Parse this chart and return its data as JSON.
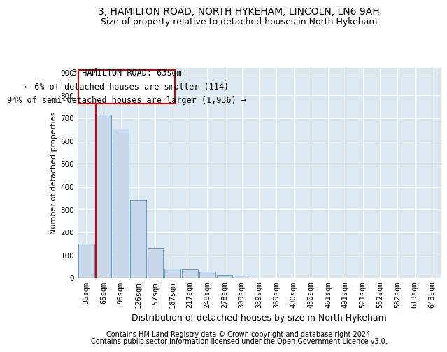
{
  "title1": "3, HAMILTON ROAD, NORTH HYKEHAM, LINCOLN, LN6 9AH",
  "title2": "Size of property relative to detached houses in North Hykeham",
  "xlabel": "Distribution of detached houses by size in North Hykeham",
  "ylabel": "Number of detached properties",
  "categories": [
    "35sqm",
    "65sqm",
    "96sqm",
    "126sqm",
    "157sqm",
    "187sqm",
    "217sqm",
    "248sqm",
    "278sqm",
    "309sqm",
    "339sqm",
    "369sqm",
    "400sqm",
    "430sqm",
    "461sqm",
    "491sqm",
    "521sqm",
    "552sqm",
    "582sqm",
    "613sqm",
    "643sqm"
  ],
  "values": [
    150,
    715,
    652,
    340,
    128,
    40,
    38,
    28,
    12,
    8,
    0,
    0,
    0,
    0,
    0,
    0,
    0,
    0,
    0,
    0,
    0
  ],
  "bar_color": "#c8d8ea",
  "bar_edge_color": "#6699bb",
  "vline_color": "#cc0000",
  "vline_x": 0.55,
  "annotation_line1": "3 HAMILTON ROAD: 63sqm",
  "annotation_line2": "← 6% of detached houses are smaller (114)",
  "annotation_line3": "94% of semi-detached houses are larger (1,936) →",
  "annotation_box_edgecolor": "#cc0000",
  "annotation_box_facecolor": "#ffffff",
  "ylim_max": 920,
  "yticks": [
    0,
    100,
    200,
    300,
    400,
    500,
    600,
    700,
    800,
    900
  ],
  "footer1": "Contains HM Land Registry data © Crown copyright and database right 2024.",
  "footer2": "Contains public sector information licensed under the Open Government Licence v3.0.",
  "bg_color": "#dce8f2",
  "grid_color": "#ffffff",
  "title_fontsize": 10,
  "subtitle_fontsize": 9,
  "ylabel_fontsize": 8,
  "xlabel_fontsize": 9,
  "tick_fontsize": 7.5,
  "annotation_fontsize": 8.5,
  "footer_fontsize": 7
}
